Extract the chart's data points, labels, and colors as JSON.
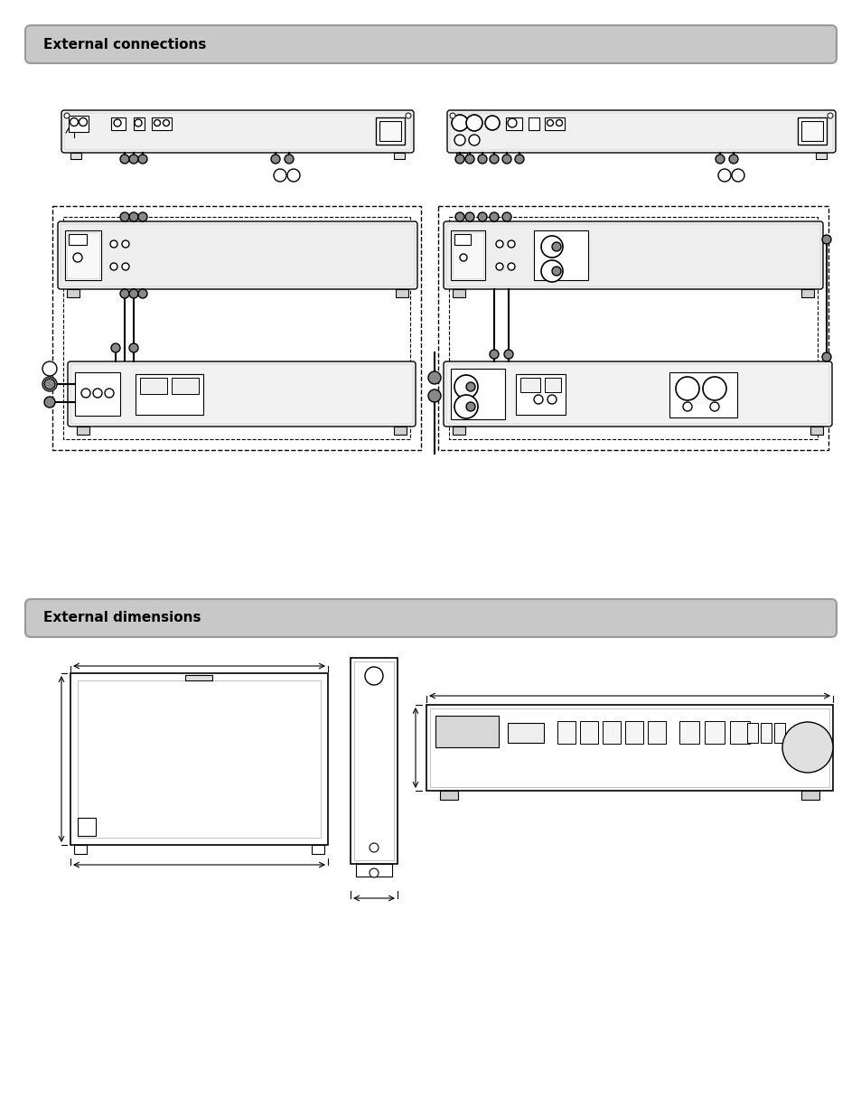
{
  "bg_color": "#ffffff",
  "page_bg": "#ffffff",
  "header1_text": "External connections",
  "header1_bg": "#c8c8c8",
  "header2_text": "External dimensions",
  "header2_bg": "#c8c8c8"
}
